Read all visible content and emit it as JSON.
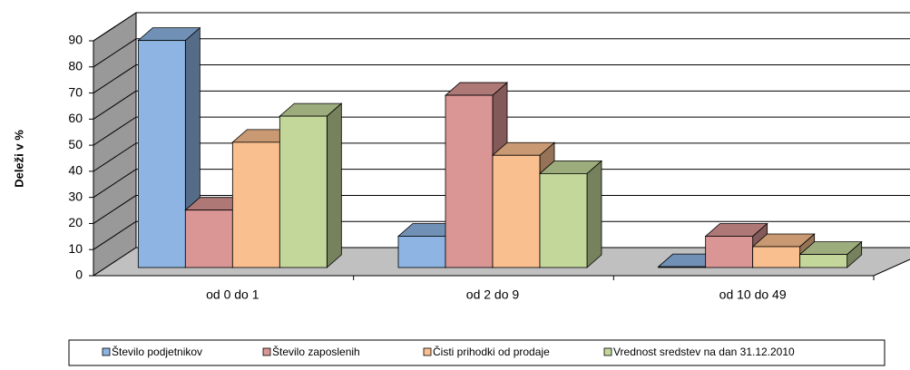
{
  "chart_data": {
    "type": "bar3d",
    "y_label": "Deleži v %",
    "categories": [
      "od 0 do 1",
      "od 2 do 9",
      "od 10 do 49"
    ],
    "series": [
      {
        "name": "Število podjetnikov",
        "color": "#8db4e2",
        "values": [
          87,
          12,
          0.3
        ]
      },
      {
        "name": "Število zaposlenih",
        "color": "#da9694",
        "values": [
          22,
          66,
          12
        ]
      },
      {
        "name": "Čisti prihodki od prodaje",
        "color": "#fabf8f",
        "values": [
          48,
          43,
          8
        ]
      },
      {
        "name": "Vrednost sredstev na dan 31.12.2010",
        "color": "#c4d79b",
        "values": [
          58,
          36,
          5
        ]
      }
    ],
    "ylim": [
      0,
      90
    ],
    "yticks": [
      0,
      10,
      20,
      30,
      40,
      50,
      60,
      70,
      80,
      90
    ],
    "grid": true,
    "legend": "bottom"
  }
}
